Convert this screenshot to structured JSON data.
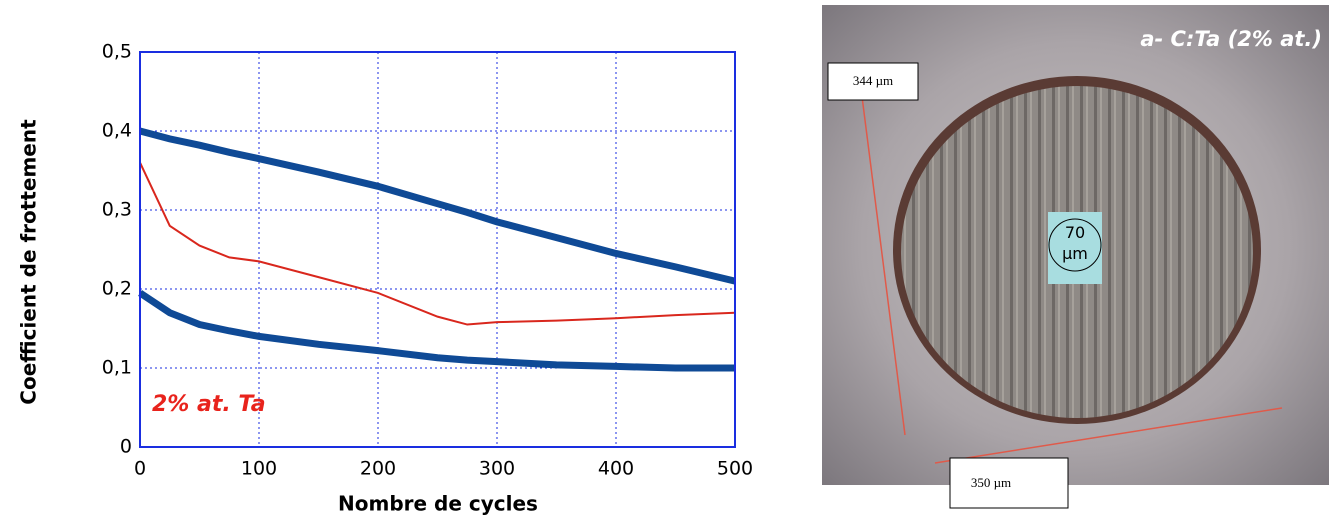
{
  "chart_data": {
    "type": "line",
    "xlabel": "Nombre de cycles",
    "ylabel": "Coefficient de frottement",
    "annotation": "2% at. Ta",
    "annotation_color": "#e8231c",
    "x": [
      0,
      25,
      50,
      75,
      100,
      150,
      200,
      250,
      275,
      300,
      350,
      400,
      450,
      500
    ],
    "series": [
      {
        "color": "#0f4a96",
        "values": [
          0.4,
          0.39,
          0.382,
          0.373,
          0.365,
          0.348,
          0.33,
          0.308,
          0.297,
          0.285,
          0.265,
          0.245,
          0.228,
          0.21
        ]
      },
      {
        "color": "#0f4a96",
        "values": [
          0.195,
          0.17,
          0.155,
          0.147,
          0.14,
          0.13,
          0.122,
          0.113,
          0.11,
          0.108,
          0.104,
          0.102,
          0.1,
          0.1
        ]
      },
      {
        "color": "#d9271d",
        "values": [
          0.36,
          0.28,
          0.255,
          0.24,
          0.235,
          0.215,
          0.195,
          0.165,
          0.155,
          0.158,
          0.16,
          0.163,
          0.167,
          0.17
        ]
      }
    ],
    "xlim": [
      0,
      500
    ],
    "xticks": [
      0,
      100,
      200,
      300,
      400,
      500
    ],
    "ylim": [
      0,
      0.5
    ],
    "yticks": [
      0,
      {
        "value": 0.1,
        "label": "0,1"
      },
      {
        "value": 0.2,
        "label": "0,2"
      },
      {
        "value": 0.3,
        "label": "0,3"
      },
      {
        "value": 0.4,
        "label": "0,4"
      },
      {
        "value": 0.5,
        "label": "0,5"
      }
    ],
    "grid": true
  },
  "micrograph": {
    "title": "a- C:Ta (2% at.)",
    "label_left": "344 µm",
    "label_bottom": "350 µm",
    "label_center": "70 µm"
  }
}
